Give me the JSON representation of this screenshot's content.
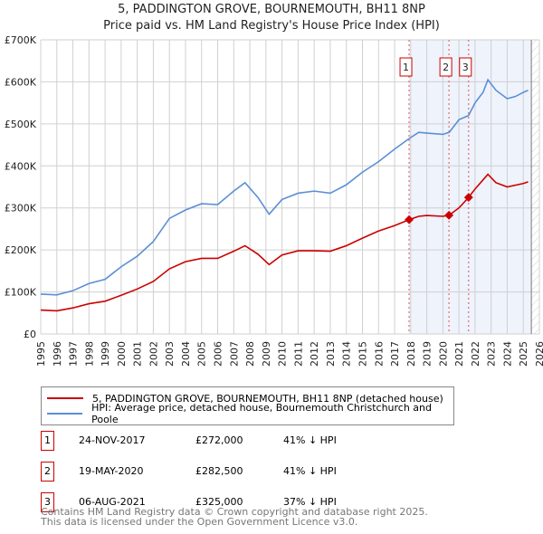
{
  "chart_data": {
    "type": "line",
    "title": "5, PADDINGTON GROVE, BOURNEMOUTH, BH11 8NP",
    "subtitle": "Price paid vs. HM Land Registry's House Price Index (HPI)",
    "xlim": [
      1995,
      2026
    ],
    "ylim": [
      0,
      700000
    ],
    "yticks": [
      {
        "v": 0,
        "label": "£0"
      },
      {
        "v": 100000,
        "label": "£100K"
      },
      {
        "v": 200000,
        "label": "£200K"
      },
      {
        "v": 300000,
        "label": "£300K"
      },
      {
        "v": 400000,
        "label": "£400K"
      },
      {
        "v": 500000,
        "label": "£500K"
      },
      {
        "v": 600000,
        "label": "£600K"
      },
      {
        "v": 700000,
        "label": "£700K"
      }
    ],
    "xticks": [
      "1995",
      "1996",
      "1997",
      "1998",
      "1999",
      "2000",
      "2001",
      "2002",
      "2003",
      "2004",
      "2005",
      "2006",
      "2007",
      "2008",
      "2009",
      "2010",
      "2011",
      "2012",
      "2013",
      "2014",
      "2015",
      "2016",
      "2017",
      "2018",
      "2019",
      "2020",
      "2021",
      "2022",
      "2023",
      "2024",
      "2025",
      "2026"
    ],
    "grid": true,
    "series": [
      {
        "name": "5, PADDINGTON GROVE, BOURNEMOUTH, BH11 8NP (detached house)",
        "color": "#cc0000",
        "points": [
          [
            1995,
            57000
          ],
          [
            1996,
            55000
          ],
          [
            1997,
            62000
          ],
          [
            1998,
            72000
          ],
          [
            1999,
            78000
          ],
          [
            2000,
            92000
          ],
          [
            2001,
            107000
          ],
          [
            2002,
            125000
          ],
          [
            2003,
            155000
          ],
          [
            2004,
            172000
          ],
          [
            2005,
            180000
          ],
          [
            2006,
            180000
          ],
          [
            2007,
            197000
          ],
          [
            2007.7,
            210000
          ],
          [
            2008.5,
            190000
          ],
          [
            2009.2,
            165000
          ],
          [
            2010,
            188000
          ],
          [
            2011,
            198000
          ],
          [
            2012,
            198000
          ],
          [
            2013,
            197000
          ],
          [
            2014,
            210000
          ],
          [
            2015,
            228000
          ],
          [
            2016,
            245000
          ],
          [
            2017,
            258000
          ],
          [
            2017.9,
            272000
          ],
          [
            2018.5,
            280000
          ],
          [
            2019,
            282000
          ],
          [
            2020,
            280000
          ],
          [
            2020.38,
            282500
          ],
          [
            2021,
            300000
          ],
          [
            2021.6,
            325000
          ],
          [
            2022,
            345000
          ],
          [
            2022.8,
            380000
          ],
          [
            2023.3,
            360000
          ],
          [
            2024,
            350000
          ],
          [
            2025,
            358000
          ],
          [
            2025.3,
            362000
          ]
        ]
      },
      {
        "name": "HPI: Average price, detached house, Bournemouth Christchurch and Poole",
        "color": "#5b8fd6",
        "points": [
          [
            1995,
            95000
          ],
          [
            1996,
            93000
          ],
          [
            1997,
            103000
          ],
          [
            1998,
            120000
          ],
          [
            1999,
            130000
          ],
          [
            2000,
            160000
          ],
          [
            2001,
            185000
          ],
          [
            2002,
            220000
          ],
          [
            2003,
            275000
          ],
          [
            2004,
            295000
          ],
          [
            2005,
            310000
          ],
          [
            2006,
            308000
          ],
          [
            2007,
            340000
          ],
          [
            2007.7,
            360000
          ],
          [
            2008.5,
            325000
          ],
          [
            2009.2,
            285000
          ],
          [
            2010,
            320000
          ],
          [
            2011,
            335000
          ],
          [
            2012,
            340000
          ],
          [
            2013,
            335000
          ],
          [
            2014,
            355000
          ],
          [
            2015,
            385000
          ],
          [
            2016,
            410000
          ],
          [
            2017,
            440000
          ],
          [
            2017.9,
            465000
          ],
          [
            2018.5,
            480000
          ],
          [
            2019,
            478000
          ],
          [
            2020,
            475000
          ],
          [
            2020.4,
            480000
          ],
          [
            2021,
            510000
          ],
          [
            2021.6,
            520000
          ],
          [
            2022,
            550000
          ],
          [
            2022.5,
            575000
          ],
          [
            2022.8,
            605000
          ],
          [
            2023.3,
            580000
          ],
          [
            2024,
            560000
          ],
          [
            2024.5,
            565000
          ],
          [
            2025,
            575000
          ],
          [
            2025.3,
            580000
          ]
        ]
      }
    ],
    "sales": [
      {
        "id": "1",
        "x": 2017.9,
        "y": 272000
      },
      {
        "id": "2",
        "x": 2020.38,
        "y": 282500
      },
      {
        "id": "3",
        "x": 2021.6,
        "y": 325000
      }
    ],
    "legend": "below"
  },
  "table": [
    {
      "id": "1",
      "date": "24-NOV-2017",
      "price": "£272,000",
      "hpi": "41% ↓ HPI"
    },
    {
      "id": "2",
      "date": "19-MAY-2020",
      "price": "£282,500",
      "hpi": "41% ↓ HPI"
    },
    {
      "id": "3",
      "date": "06-AUG-2021",
      "price": "£325,000",
      "hpi": "37% ↓ HPI"
    }
  ],
  "footer": [
    "Contains HM Land Registry data © Crown copyright and database right 2025.",
    "This data is licensed under the Open Government Licence v3.0."
  ]
}
